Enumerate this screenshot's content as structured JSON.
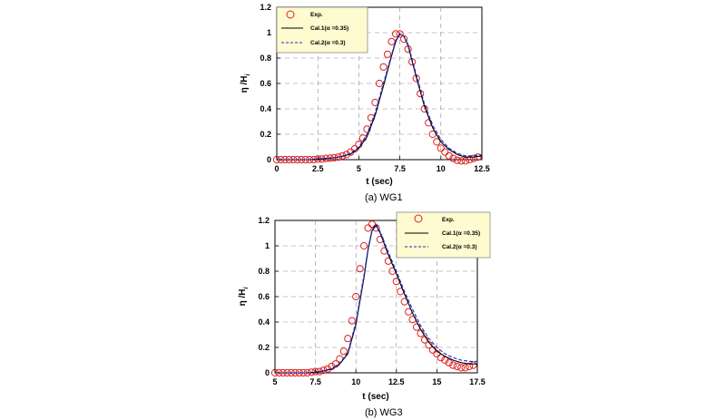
{
  "chart_data": [
    {
      "type": "line",
      "caption": "(a) WG1",
      "xlabel": "t (sec)",
      "ylabel": "η /H",
      "ylabel_subscript": "i",
      "xlim": [
        0,
        12.5
      ],
      "ylim": [
        0,
        1.2
      ],
      "xticks": [
        "0",
        "2.5",
        "5",
        "7.5",
        "10",
        "12.5"
      ],
      "yticks": [
        "0",
        "0.2",
        "0.4",
        "0.6",
        "0.8",
        "1",
        "1.2"
      ],
      "grid": true,
      "legend_position": "top-left",
      "legend": [
        "Exp.",
        "Cal.1(α =0.35)",
        "Cal.2(α =0.3)"
      ],
      "series": [
        {
          "name": "Exp.",
          "style": "circles",
          "color": "#e02020",
          "x": [
            0,
            0.25,
            0.5,
            0.75,
            1,
            1.25,
            1.5,
            1.75,
            2,
            2.25,
            2.5,
            2.75,
            3,
            3.25,
            3.5,
            3.75,
            4,
            4.25,
            4.5,
            4.75,
            5,
            5.25,
            5.5,
            5.75,
            6,
            6.25,
            6.5,
            6.75,
            7,
            7.25,
            7.5,
            7.75,
            8,
            8.25,
            8.5,
            8.75,
            9,
            9.25,
            9.5,
            9.75,
            10,
            10.25,
            10.5,
            10.75,
            11,
            11.25,
            11.5,
            11.75,
            12,
            12.25
          ],
          "y": [
            0,
            0,
            0,
            0,
            0,
            0,
            0,
            0,
            0,
            0,
            0.005,
            0.005,
            0.01,
            0.012,
            0.015,
            0.02,
            0.03,
            0.04,
            0.06,
            0.085,
            0.12,
            0.17,
            0.24,
            0.33,
            0.45,
            0.6,
            0.73,
            0.83,
            0.93,
            0.99,
            0.99,
            0.95,
            0.87,
            0.77,
            0.64,
            0.52,
            0.4,
            0.29,
            0.2,
            0.14,
            0.09,
            0.06,
            0.03,
            0.01,
            -0.005,
            -0.01,
            -0.01,
            0,
            0.01,
            0.02
          ]
        },
        {
          "name": "Cal.1(α =0.35)",
          "style": "solid",
          "color": "#000000",
          "x": [
            0,
            1,
            2,
            3,
            3.5,
            4,
            4.5,
            5,
            5.5,
            6,
            6.5,
            7,
            7.25,
            7.5,
            7.75,
            8,
            8.5,
            9,
            9.5,
            10,
            10.5,
            11,
            11.5,
            12,
            12.5
          ],
          "y": [
            0,
            0,
            0,
            0.01,
            0.015,
            0.025,
            0.045,
            0.09,
            0.18,
            0.35,
            0.58,
            0.82,
            0.93,
            0.99,
            0.97,
            0.9,
            0.65,
            0.42,
            0.25,
            0.14,
            0.08,
            0.04,
            0.02,
            0.02,
            0.03
          ]
        },
        {
          "name": "Cal.2(α =0.3)",
          "style": "dashed",
          "color": "#1a2acc",
          "x": [
            0,
            1,
            2,
            3,
            3.5,
            4,
            4.5,
            5,
            5.5,
            6,
            6.5,
            7,
            7.25,
            7.5,
            7.75,
            8,
            8.5,
            9,
            9.5,
            10,
            10.5,
            11,
            11.5,
            12,
            12.5
          ],
          "y": [
            0,
            0,
            0,
            0.01,
            0.015,
            0.027,
            0.05,
            0.1,
            0.2,
            0.37,
            0.6,
            0.83,
            0.94,
            0.99,
            0.97,
            0.91,
            0.67,
            0.44,
            0.27,
            0.16,
            0.09,
            0.05,
            0.03,
            0.03,
            0.04
          ]
        }
      ]
    },
    {
      "type": "line",
      "caption": "(b) WG3",
      "xlabel": "t (sec)",
      "ylabel": "η /H",
      "ylabel_subscript": "i",
      "xlim": [
        5,
        17.5
      ],
      "ylim": [
        0,
        1.2
      ],
      "xticks": [
        "5",
        "7.5",
        "10",
        "12.5",
        "15",
        "17.5"
      ],
      "yticks": [
        "0",
        "0.2",
        "0.4",
        "0.6",
        "0.8",
        "1",
        "1.2"
      ],
      "grid": true,
      "legend_position": "top-right",
      "legend": [
        "Exp.",
        "Cal.1(α =0.35)",
        "Cal.2(α =0.3)"
      ],
      "series": [
        {
          "name": "Exp.",
          "style": "circles",
          "color": "#e02020",
          "x": [
            5,
            5.25,
            5.5,
            5.75,
            6,
            6.25,
            6.5,
            6.75,
            7,
            7.25,
            7.5,
            7.75,
            8,
            8.25,
            8.5,
            8.75,
            9,
            9.25,
            9.5,
            9.75,
            10,
            10.25,
            10.5,
            10.75,
            11,
            11.25,
            11.5,
            11.75,
            12,
            12.25,
            12.5,
            12.75,
            13,
            13.25,
            13.5,
            13.75,
            14,
            14.25,
            14.5,
            14.75,
            15,
            15.25,
            15.5,
            15.75,
            16,
            16.25,
            16.5,
            16.75,
            17,
            17.25
          ],
          "y": [
            0,
            0,
            0,
            0,
            0,
            0,
            0,
            0,
            0,
            0.005,
            0.01,
            0.01,
            0.02,
            0.03,
            0.05,
            0.07,
            0.11,
            0.17,
            0.27,
            0.41,
            0.6,
            0.82,
            1.0,
            1.14,
            1.17,
            1.14,
            1.05,
            0.96,
            0.88,
            0.8,
            0.72,
            0.64,
            0.56,
            0.48,
            0.42,
            0.36,
            0.31,
            0.26,
            0.22,
            0.18,
            0.15,
            0.12,
            0.1,
            0.08,
            0.06,
            0.05,
            0.04,
            0.04,
            0.05,
            0.06
          ]
        },
        {
          "name": "Cal.1(α =0.35)",
          "style": "solid",
          "color": "#000000",
          "x": [
            5,
            6,
            7,
            7.5,
            8,
            8.5,
            9,
            9.5,
            10,
            10.5,
            10.75,
            11,
            11.25,
            11.5,
            12,
            12.5,
            13,
            13.5,
            14,
            14.5,
            15,
            15.5,
            16,
            16.5,
            17,
            17.5
          ],
          "y": [
            0,
            0,
            0,
            0.005,
            0.015,
            0.03,
            0.07,
            0.15,
            0.38,
            0.75,
            0.97,
            1.12,
            1.16,
            1.1,
            0.93,
            0.78,
            0.62,
            0.47,
            0.34,
            0.24,
            0.17,
            0.13,
            0.1,
            0.08,
            0.07,
            0.07
          ]
        },
        {
          "name": "Cal.2(α =0.3)",
          "style": "dashed",
          "color": "#1a2acc",
          "x": [
            5,
            6,
            7,
            7.5,
            8,
            8.5,
            9,
            9.5,
            10,
            10.5,
            10.75,
            11,
            11.25,
            11.5,
            12,
            12.5,
            13,
            13.5,
            14,
            14.5,
            15,
            15.5,
            16,
            16.5,
            17,
            17.5
          ],
          "y": [
            0,
            0,
            0,
            0.005,
            0.016,
            0.032,
            0.075,
            0.16,
            0.4,
            0.77,
            0.98,
            1.13,
            1.17,
            1.11,
            0.95,
            0.8,
            0.64,
            0.5,
            0.37,
            0.27,
            0.2,
            0.15,
            0.12,
            0.1,
            0.09,
            0.09
          ]
        }
      ]
    }
  ]
}
